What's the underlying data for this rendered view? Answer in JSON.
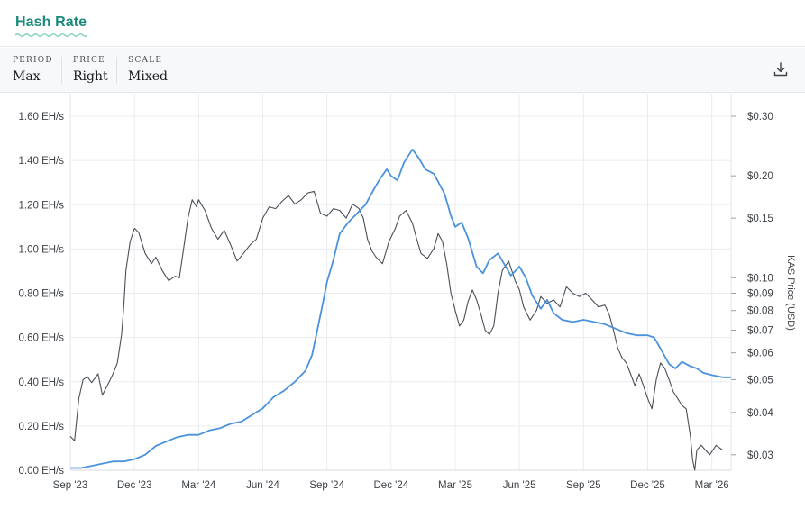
{
  "header": {
    "title": "Hash Rate"
  },
  "controls": [
    {
      "label": "PERIOD",
      "value": "Max"
    },
    {
      "label": "PRICE",
      "value": "Right"
    },
    {
      "label": "SCALE",
      "value": "Mixed"
    }
  ],
  "icons": {
    "download": "download-icon",
    "title_underline": "wave-underline-icon"
  },
  "colors": {
    "hashrate": "#4a92dc",
    "price": "#4a4f56",
    "title": "#1b8a7a",
    "grid": "#e9ecef"
  },
  "chart_data": {
    "type": "line",
    "title": "Hash Rate",
    "xlabel": "",
    "ylabel": "",
    "y2label": "KAS Price (USD)",
    "ylim": [
      0,
      1.6
    ],
    "y2lim": [
      0.027,
      0.3
    ],
    "y2scale": "log",
    "yticks": [
      {
        "value": 0.0,
        "label": "0.00 EH/s"
      },
      {
        "value": 0.2,
        "label": "0.20 EH/s"
      },
      {
        "value": 0.4,
        "label": "0.40 EH/s"
      },
      {
        "value": 0.6,
        "label": "0.60 EH/s"
      },
      {
        "value": 0.8,
        "label": "0.80 EH/s"
      },
      {
        "value": 1.0,
        "label": "1.00 EH/s"
      },
      {
        "value": 1.2,
        "label": "1.20 EH/s"
      },
      {
        "value": 1.4,
        "label": "1.40 EH/s"
      },
      {
        "value": 1.6,
        "label": "1.60 EH/s"
      }
    ],
    "y2ticks": [
      {
        "value": 0.03,
        "label": "$0.03"
      },
      {
        "value": 0.04,
        "label": "$0.04"
      },
      {
        "value": 0.05,
        "label": "$0.05"
      },
      {
        "value": 0.06,
        "label": "$0.06"
      },
      {
        "value": 0.07,
        "label": "$0.07"
      },
      {
        "value": 0.08,
        "label": "$0.08"
      },
      {
        "value": 0.09,
        "label": "$0.09"
      },
      {
        "value": 0.1,
        "label": "$0.10"
      },
      {
        "value": 0.15,
        "label": "$0.15"
      },
      {
        "value": 0.2,
        "label": "$0.20"
      },
      {
        "value": 0.3,
        "label": "$0.30"
      }
    ],
    "xticks": [
      {
        "t": 0,
        "label": "Sep '23"
      },
      {
        "t": 3,
        "label": "Dec '23"
      },
      {
        "t": 6,
        "label": "Mar '24"
      },
      {
        "t": 9,
        "label": "Jun '24"
      },
      {
        "t": 12,
        "label": "Sep '24"
      },
      {
        "t": 15,
        "label": "Dec '24"
      },
      {
        "t": 18,
        "label": "Mar '25"
      },
      {
        "t": 21,
        "label": "Jun '25"
      },
      {
        "t": 24,
        "label": "Sep '25"
      },
      {
        "t": 27,
        "label": "Dec '25"
      },
      {
        "t": 30,
        "label": "Mar '26"
      }
    ],
    "xlim": [
      0,
      30.9
    ],
    "series": [
      {
        "name": "Hash Rate",
        "axis": "left",
        "points": [
          [
            0.0,
            0.01
          ],
          [
            0.5,
            0.01
          ],
          [
            1.0,
            0.02
          ],
          [
            1.5,
            0.03
          ],
          [
            2.0,
            0.04
          ],
          [
            2.5,
            0.04
          ],
          [
            3.0,
            0.05
          ],
          [
            3.5,
            0.07
          ],
          [
            4.0,
            0.11
          ],
          [
            4.5,
            0.13
          ],
          [
            5.0,
            0.15
          ],
          [
            5.5,
            0.16
          ],
          [
            6.0,
            0.16
          ],
          [
            6.5,
            0.18
          ],
          [
            7.0,
            0.19
          ],
          [
            7.5,
            0.21
          ],
          [
            8.0,
            0.22
          ],
          [
            8.5,
            0.25
          ],
          [
            9.0,
            0.28
          ],
          [
            9.5,
            0.33
          ],
          [
            10.0,
            0.36
          ],
          [
            10.5,
            0.4
          ],
          [
            11.0,
            0.45
          ],
          [
            11.3,
            0.52
          ],
          [
            11.5,
            0.61
          ],
          [
            11.8,
            0.75
          ],
          [
            12.0,
            0.85
          ],
          [
            12.3,
            0.95
          ],
          [
            12.6,
            1.07
          ],
          [
            13.0,
            1.12
          ],
          [
            13.5,
            1.17
          ],
          [
            13.8,
            1.2
          ],
          [
            14.2,
            1.27
          ],
          [
            14.5,
            1.32
          ],
          [
            14.8,
            1.36
          ],
          [
            15.0,
            1.33
          ],
          [
            15.3,
            1.31
          ],
          [
            15.6,
            1.39
          ],
          [
            16.0,
            1.45
          ],
          [
            16.3,
            1.41
          ],
          [
            16.6,
            1.36
          ],
          [
            17.0,
            1.34
          ],
          [
            17.5,
            1.25
          ],
          [
            17.8,
            1.15
          ],
          [
            18.0,
            1.1
          ],
          [
            18.3,
            1.12
          ],
          [
            18.6,
            1.05
          ],
          [
            19.0,
            0.92
          ],
          [
            19.3,
            0.89
          ],
          [
            19.6,
            0.95
          ],
          [
            20.0,
            0.98
          ],
          [
            20.3,
            0.93
          ],
          [
            20.6,
            0.88
          ],
          [
            21.0,
            0.92
          ],
          [
            21.3,
            0.87
          ],
          [
            21.6,
            0.79
          ],
          [
            22.0,
            0.73
          ],
          [
            22.3,
            0.77
          ],
          [
            22.6,
            0.71
          ],
          [
            23.0,
            0.68
          ],
          [
            23.5,
            0.67
          ],
          [
            24.0,
            0.68
          ],
          [
            24.5,
            0.67
          ],
          [
            25.0,
            0.66
          ],
          [
            25.5,
            0.64
          ],
          [
            26.0,
            0.62
          ],
          [
            26.5,
            0.61
          ],
          [
            27.0,
            0.61
          ],
          [
            27.3,
            0.6
          ],
          [
            27.6,
            0.55
          ],
          [
            28.0,
            0.48
          ],
          [
            28.3,
            0.46
          ],
          [
            28.6,
            0.49
          ],
          [
            29.0,
            0.47
          ],
          [
            29.3,
            0.46
          ],
          [
            29.6,
            0.44
          ],
          [
            30.0,
            0.43
          ],
          [
            30.5,
            0.42
          ],
          [
            30.9,
            0.42
          ]
        ]
      },
      {
        "name": "KAS Price (USD)",
        "axis": "right",
        "points": [
          [
            0.0,
            0.034
          ],
          [
            0.2,
            0.033
          ],
          [
            0.4,
            0.044
          ],
          [
            0.6,
            0.05
          ],
          [
            0.8,
            0.051
          ],
          [
            1.0,
            0.049
          ],
          [
            1.3,
            0.052
          ],
          [
            1.5,
            0.045
          ],
          [
            1.8,
            0.049
          ],
          [
            2.0,
            0.052
          ],
          [
            2.2,
            0.056
          ],
          [
            2.4,
            0.068
          ],
          [
            2.5,
            0.082
          ],
          [
            2.6,
            0.105
          ],
          [
            2.8,
            0.128
          ],
          [
            3.0,
            0.14
          ],
          [
            3.2,
            0.136
          ],
          [
            3.5,
            0.118
          ],
          [
            3.8,
            0.11
          ],
          [
            4.0,
            0.115
          ],
          [
            4.3,
            0.105
          ],
          [
            4.6,
            0.098
          ],
          [
            4.9,
            0.101
          ],
          [
            5.1,
            0.1
          ],
          [
            5.3,
            0.122
          ],
          [
            5.5,
            0.15
          ],
          [
            5.7,
            0.17
          ],
          [
            5.9,
            0.162
          ],
          [
            6.0,
            0.17
          ],
          [
            6.3,
            0.158
          ],
          [
            6.6,
            0.14
          ],
          [
            6.9,
            0.13
          ],
          [
            7.2,
            0.138
          ],
          [
            7.5,
            0.125
          ],
          [
            7.8,
            0.112
          ],
          [
            8.1,
            0.118
          ],
          [
            8.4,
            0.125
          ],
          [
            8.7,
            0.13
          ],
          [
            9.0,
            0.15
          ],
          [
            9.3,
            0.162
          ],
          [
            9.6,
            0.16
          ],
          [
            9.9,
            0.168
          ],
          [
            10.2,
            0.175
          ],
          [
            10.5,
            0.165
          ],
          [
            10.8,
            0.17
          ],
          [
            11.1,
            0.178
          ],
          [
            11.4,
            0.18
          ],
          [
            11.7,
            0.155
          ],
          [
            12.0,
            0.152
          ],
          [
            12.3,
            0.16
          ],
          [
            12.6,
            0.158
          ],
          [
            12.9,
            0.15
          ],
          [
            13.2,
            0.165
          ],
          [
            13.5,
            0.16
          ],
          [
            13.7,
            0.15
          ],
          [
            13.9,
            0.13
          ],
          [
            14.1,
            0.12
          ],
          [
            14.3,
            0.115
          ],
          [
            14.6,
            0.11
          ],
          [
            14.9,
            0.128
          ],
          [
            15.2,
            0.14
          ],
          [
            15.4,
            0.152
          ],
          [
            15.7,
            0.158
          ],
          [
            16.0,
            0.145
          ],
          [
            16.2,
            0.13
          ],
          [
            16.4,
            0.118
          ],
          [
            16.7,
            0.114
          ],
          [
            17.0,
            0.122
          ],
          [
            17.2,
            0.135
          ],
          [
            17.4,
            0.128
          ],
          [
            17.6,
            0.11
          ],
          [
            17.8,
            0.09
          ],
          [
            18.0,
            0.08
          ],
          [
            18.2,
            0.072
          ],
          [
            18.4,
            0.075
          ],
          [
            18.6,
            0.085
          ],
          [
            18.8,
            0.092
          ],
          [
            19.0,
            0.086
          ],
          [
            19.2,
            0.078
          ],
          [
            19.4,
            0.07
          ],
          [
            19.6,
            0.068
          ],
          [
            19.8,
            0.072
          ],
          [
            20.0,
            0.09
          ],
          [
            20.2,
            0.105
          ],
          [
            20.5,
            0.112
          ],
          [
            20.8,
            0.098
          ],
          [
            21.0,
            0.092
          ],
          [
            21.2,
            0.082
          ],
          [
            21.5,
            0.075
          ],
          [
            21.8,
            0.08
          ],
          [
            22.0,
            0.088
          ],
          [
            22.3,
            0.084
          ],
          [
            22.6,
            0.086
          ],
          [
            22.9,
            0.082
          ],
          [
            23.2,
            0.094
          ],
          [
            23.5,
            0.09
          ],
          [
            23.8,
            0.088
          ],
          [
            24.1,
            0.09
          ],
          [
            24.4,
            0.086
          ],
          [
            24.7,
            0.082
          ],
          [
            25.0,
            0.083
          ],
          [
            25.2,
            0.078
          ],
          [
            25.4,
            0.07
          ],
          [
            25.6,
            0.062
          ],
          [
            25.8,
            0.058
          ],
          [
            26.0,
            0.056
          ],
          [
            26.2,
            0.052
          ],
          [
            26.4,
            0.048
          ],
          [
            26.6,
            0.052
          ],
          [
            26.8,
            0.048
          ],
          [
            27.0,
            0.044
          ],
          [
            27.2,
            0.041
          ],
          [
            27.4,
            0.05
          ],
          [
            27.6,
            0.056
          ],
          [
            27.8,
            0.054
          ],
          [
            28.0,
            0.05
          ],
          [
            28.2,
            0.046
          ],
          [
            28.4,
            0.044
          ],
          [
            28.6,
            0.042
          ],
          [
            28.8,
            0.041
          ],
          [
            29.0,
            0.034
          ],
          [
            29.1,
            0.029
          ],
          [
            29.2,
            0.027
          ],
          [
            29.3,
            0.031
          ],
          [
            29.5,
            0.032
          ],
          [
            29.7,
            0.031
          ],
          [
            29.9,
            0.03
          ],
          [
            30.2,
            0.032
          ],
          [
            30.5,
            0.031
          ],
          [
            30.9,
            0.031
          ]
        ]
      }
    ]
  }
}
